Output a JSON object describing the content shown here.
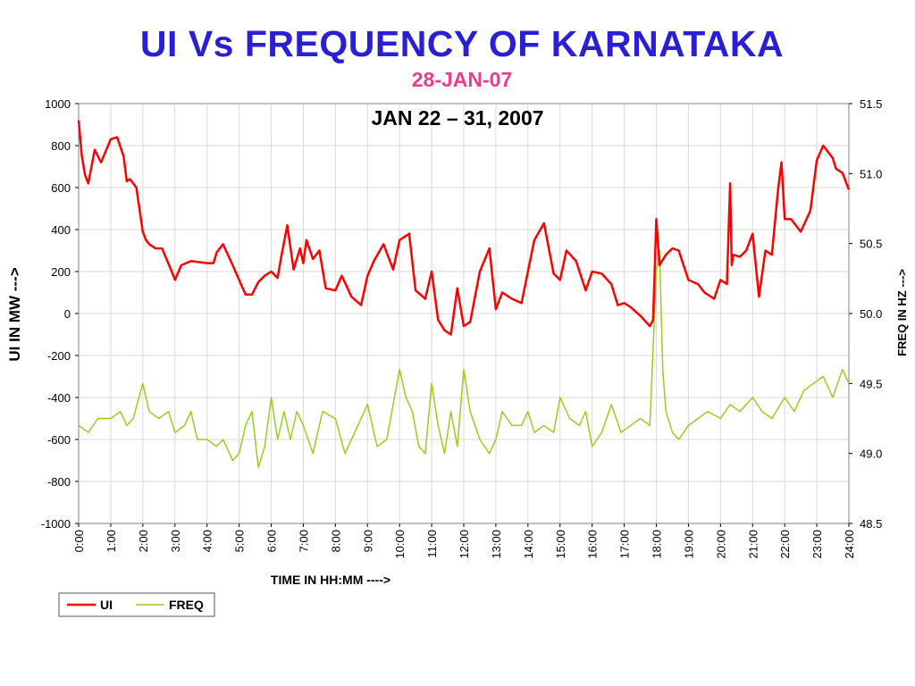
{
  "header": {
    "title": "UI Vs FREQUENCY OF KARNATAKA",
    "subtitle": "28-JAN-07"
  },
  "chart_data": {
    "type": "line",
    "title": "JAN 22 – 31, 2007",
    "xlabel": "TIME IN HH:MM  ---->",
    "ylabel_left": "UI IN MW  --->",
    "ylabel_right": "FREQ IN HZ  --->",
    "categories": [
      "0:00",
      "1:00",
      "2:00",
      "3:00",
      "4:00",
      "5:00",
      "6:00",
      "7:00",
      "8:00",
      "9:00",
      "10:00",
      "11:00",
      "12:00",
      "13:00",
      "14:00",
      "15:00",
      "16:00",
      "17:00",
      "18:00",
      "19:00",
      "20:00",
      "21:00",
      "22:00",
      "23:00",
      "24:00"
    ],
    "ylim_left": [
      -1000,
      1000
    ],
    "yticks_left": [
      "1000",
      "800",
      "600",
      "400",
      "200",
      "0",
      "-200",
      "-400",
      "-600",
      "-800",
      "-1000"
    ],
    "ylim_right": [
      48.5,
      51.5
    ],
    "yticks_right": [
      "51.5",
      "51.0",
      "50.5",
      "50.0",
      "49.5",
      "49.0",
      "48.5"
    ],
    "grid": true,
    "legend_position": "bottom-left",
    "series": [
      {
        "name": "UI",
        "axis": "left",
        "color": "#ff0000",
        "x": [
          0,
          0.1,
          0.2,
          0.3,
          0.5,
          0.7,
          1.0,
          1.2,
          1.4,
          1.5,
          1.6,
          1.8,
          2.0,
          2.1,
          2.2,
          2.4,
          2.6,
          2.9,
          3.0,
          3.2,
          3.5,
          4.0,
          4.2,
          4.3,
          4.5,
          4.8,
          5.0,
          5.2,
          5.4,
          5.6,
          5.8,
          6.0,
          6.2,
          6.3,
          6.5,
          6.7,
          6.9,
          7.0,
          7.1,
          7.3,
          7.5,
          7.7,
          8.0,
          8.2,
          8.5,
          8.8,
          9.0,
          9.2,
          9.5,
          9.8,
          10.0,
          10.3,
          10.5,
          10.8,
          11.0,
          11.2,
          11.4,
          11.6,
          11.8,
          12.0,
          12.2,
          12.5,
          12.8,
          13.0,
          13.2,
          13.5,
          13.8,
          14.0,
          14.2,
          14.5,
          14.8,
          15.0,
          15.2,
          15.5,
          15.8,
          16.0,
          16.3,
          16.6,
          16.8,
          17.0,
          17.2,
          17.5,
          17.8,
          17.9,
          18.0,
          18.1,
          18.3,
          18.5,
          18.7,
          19.0,
          19.3,
          19.5,
          19.8,
          20.0,
          20.2,
          20.3,
          20.35,
          20.4,
          20.6,
          20.8,
          21.0,
          21.2,
          21.4,
          21.6,
          21.8,
          21.9,
          22.0,
          22.2,
          22.5,
          22.8,
          23.0,
          23.2,
          23.5,
          23.6,
          23.8,
          24.0
        ],
        "values": [
          920,
          750,
          660,
          620,
          780,
          720,
          830,
          840,
          750,
          630,
          640,
          600,
          390,
          350,
          330,
          310,
          310,
          200,
          160,
          230,
          250,
          240,
          240,
          290,
          330,
          230,
          160,
          90,
          90,
          150,
          180,
          200,
          170,
          260,
          420,
          210,
          310,
          240,
          350,
          260,
          300,
          120,
          110,
          180,
          80,
          40,
          180,
          250,
          330,
          210,
          350,
          380,
          110,
          70,
          200,
          -30,
          -80,
          -100,
          120,
          -60,
          -40,
          200,
          310,
          20,
          100,
          70,
          50,
          200,
          350,
          430,
          190,
          160,
          300,
          250,
          110,
          200,
          190,
          140,
          40,
          50,
          30,
          -10,
          -60,
          -30,
          450,
          230,
          280,
          310,
          300,
          160,
          140,
          100,
          70,
          160,
          140,
          620,
          230,
          280,
          270,
          300,
          380,
          80,
          300,
          280,
          600,
          720,
          450,
          450,
          390,
          490,
          730,
          800,
          740,
          690,
          670,
          590
        ]
      },
      {
        "name": "FREQ",
        "axis": "right",
        "color": "#9acd1e",
        "x": [
          0,
          0.3,
          0.6,
          1.0,
          1.3,
          1.5,
          1.7,
          2.0,
          2.2,
          2.5,
          2.8,
          3.0,
          3.3,
          3.5,
          3.7,
          4.0,
          4.3,
          4.5,
          4.8,
          5.0,
          5.2,
          5.4,
          5.6,
          5.8,
          6.0,
          6.2,
          6.4,
          6.6,
          6.8,
          7.0,
          7.3,
          7.6,
          8.0,
          8.3,
          8.6,
          9.0,
          9.3,
          9.6,
          10.0,
          10.2,
          10.4,
          10.6,
          10.8,
          11.0,
          11.2,
          11.4,
          11.6,
          11.8,
          12.0,
          12.2,
          12.5,
          12.8,
          13.0,
          13.2,
          13.5,
          13.8,
          14.0,
          14.2,
          14.5,
          14.8,
          15.0,
          15.3,
          15.6,
          15.8,
          16.0,
          16.3,
          16.6,
          16.9,
          17.2,
          17.5,
          17.8,
          18.0,
          18.1,
          18.2,
          18.3,
          18.5,
          18.7,
          19.0,
          19.3,
          19.6,
          20.0,
          20.3,
          20.6,
          21.0,
          21.3,
          21.6,
          22.0,
          22.3,
          22.6,
          22.9,
          23.2,
          23.5,
          23.8,
          24.0
        ],
        "values": [
          49.2,
          49.15,
          49.25,
          49.25,
          49.3,
          49.2,
          49.25,
          49.5,
          49.3,
          49.25,
          49.3,
          49.15,
          49.2,
          49.3,
          49.1,
          49.1,
          49.05,
          49.1,
          48.95,
          49.0,
          49.2,
          49.3,
          48.9,
          49.05,
          49.4,
          49.1,
          49.3,
          49.1,
          49.3,
          49.2,
          49.0,
          49.3,
          49.25,
          49.0,
          49.15,
          49.35,
          49.05,
          49.1,
          49.6,
          49.4,
          49.3,
          49.05,
          49.0,
          49.5,
          49.2,
          49.0,
          49.3,
          49.05,
          49.6,
          49.3,
          49.1,
          49.0,
          49.1,
          49.3,
          49.2,
          49.2,
          49.3,
          49.15,
          49.2,
          49.15,
          49.4,
          49.25,
          49.2,
          49.3,
          49.05,
          49.15,
          49.35,
          49.15,
          49.2,
          49.25,
          49.2,
          50.3,
          50.45,
          49.6,
          49.3,
          49.15,
          49.1,
          49.2,
          49.25,
          49.3,
          49.25,
          49.35,
          49.3,
          49.4,
          49.3,
          49.25,
          49.4,
          49.3,
          49.45,
          49.5,
          49.55,
          49.4,
          49.6,
          49.5
        ]
      }
    ]
  },
  "legend": {
    "items": [
      {
        "label": "UI",
        "color": "#ff0000"
      },
      {
        "label": "FREQ",
        "color": "#9acd1e"
      }
    ]
  }
}
